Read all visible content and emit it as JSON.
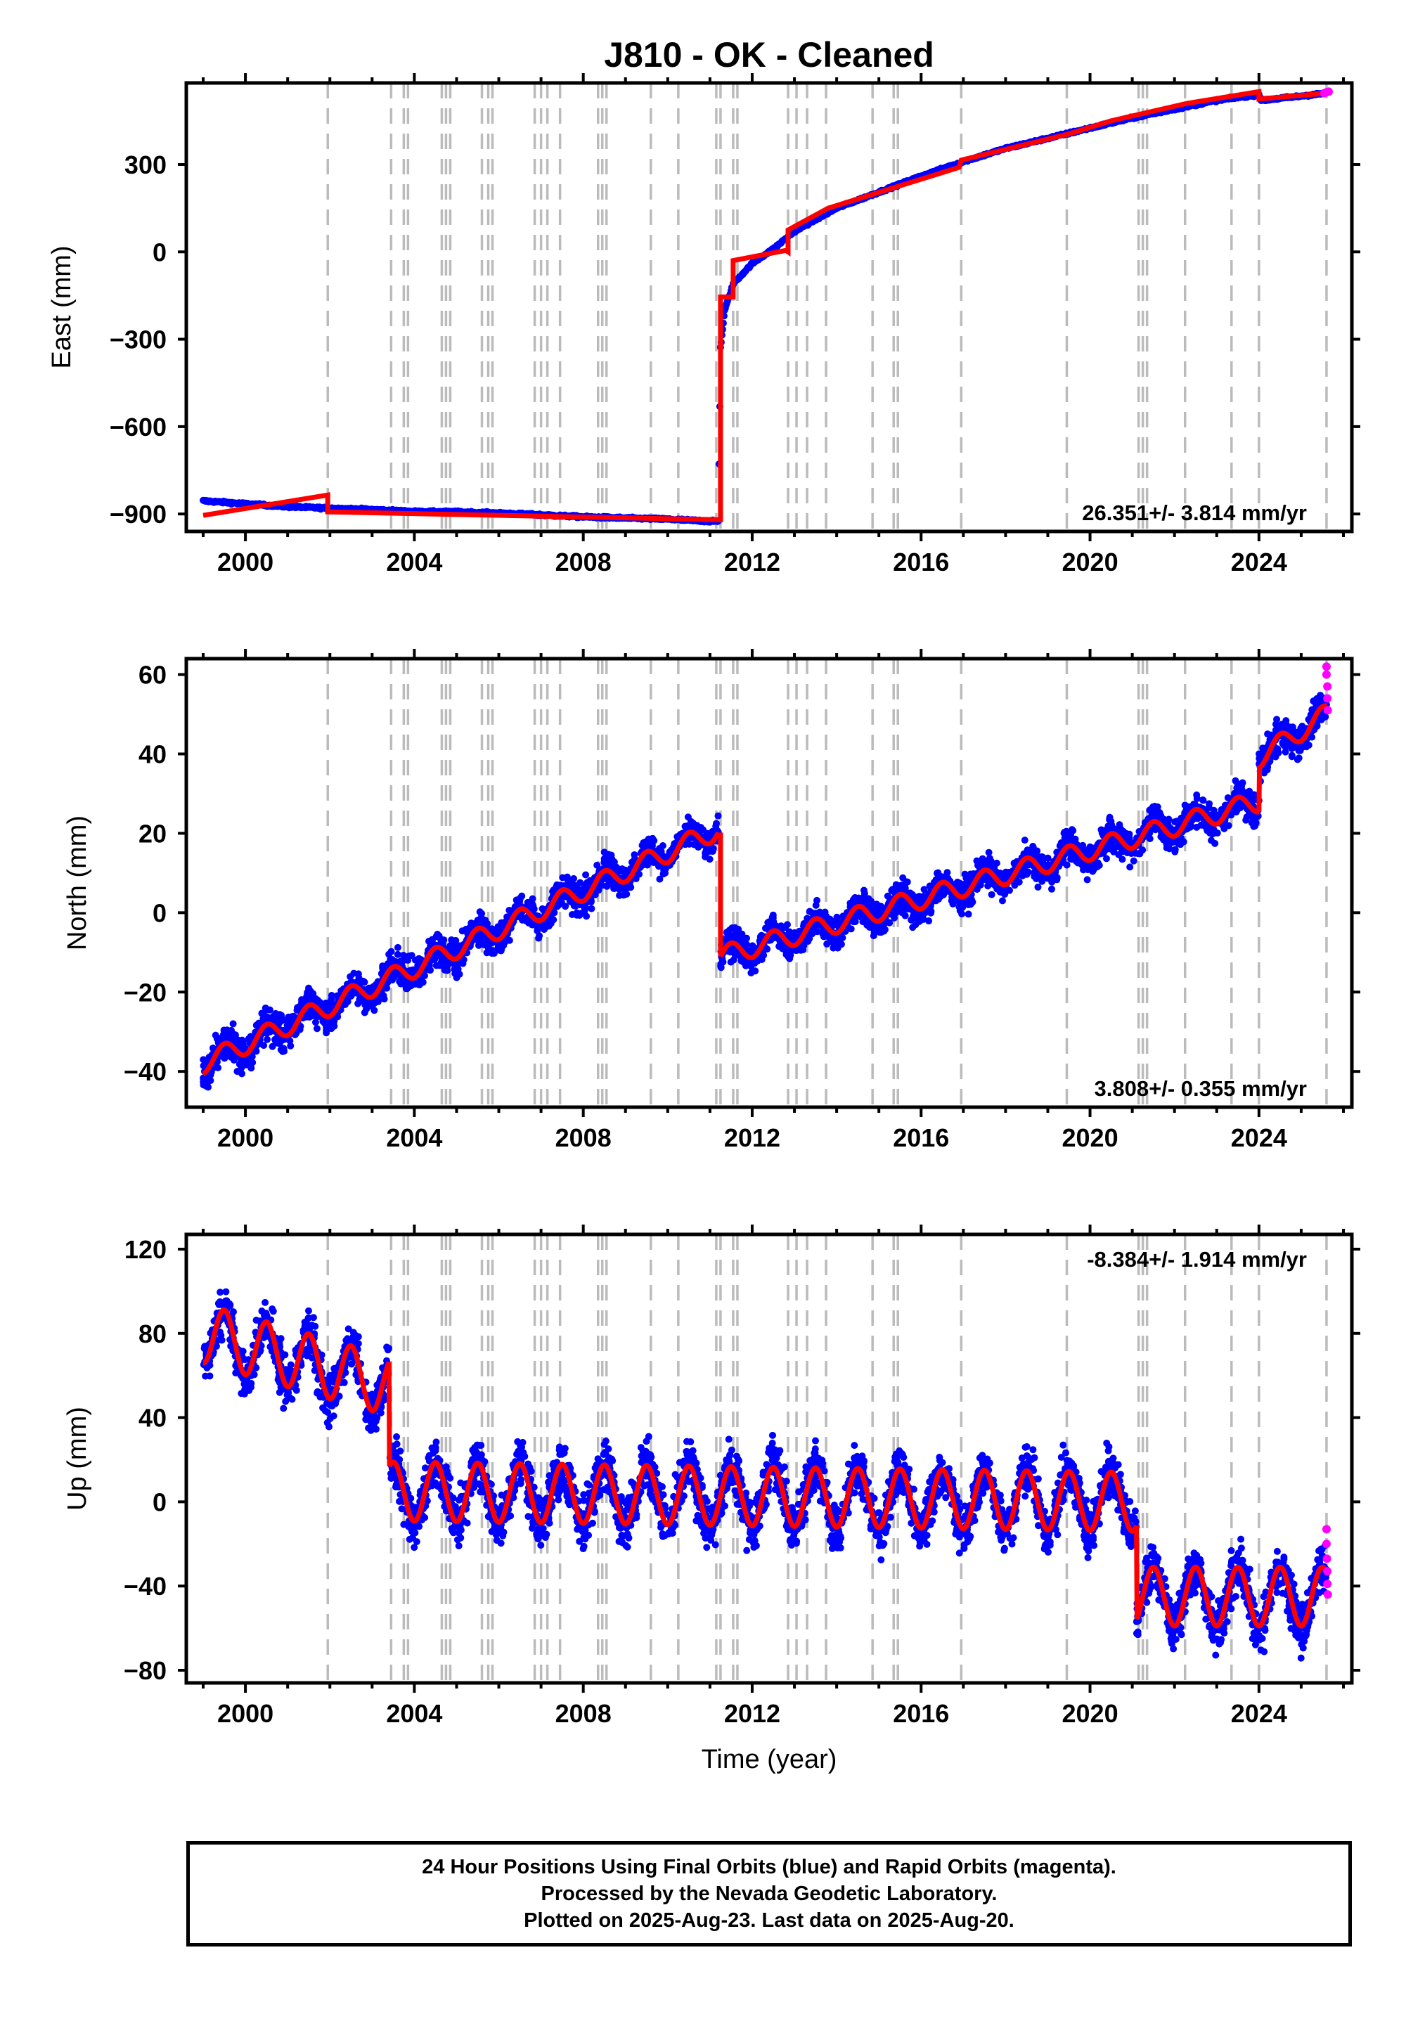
{
  "chart_data": {
    "type": "scatter",
    "title": "J810  - OK - Cleaned",
    "xlabel": "Time (year)",
    "x_ticks": [
      2000,
      2004,
      2008,
      2012,
      2016,
      2020,
      2024
    ],
    "xlim": [
      1998.6,
      2026.2
    ],
    "series_colors": {
      "final_orbits": "#0000ff",
      "rapid_orbits": "#ff00ff",
      "model": "#ff0000",
      "event_lines": "#bbbbbb"
    },
    "event_lines": [
      2001.95,
      2003.45,
      2003.75,
      2003.85,
      2004.65,
      2004.75,
      2004.85,
      2005.6,
      2005.75,
      2005.85,
      2006.85,
      2007.0,
      2007.15,
      2007.45,
      2008.35,
      2008.45,
      2008.55,
      2009.6,
      2010.25,
      2011.15,
      2011.25,
      2011.55,
      2011.65,
      2012.85,
      2013.05,
      2013.3,
      2013.75,
      2014.85,
      2015.35,
      2015.45,
      2016.95,
      2019.45,
      2021.15,
      2021.25,
      2021.35,
      2022.25,
      2023.35,
      2024.0,
      2025.6
    ],
    "panels": [
      {
        "ylabel": "East (mm)",
        "ylim": [
          -960,
          580
        ],
        "y_ticks": [
          300,
          0,
          -300,
          -600,
          -900
        ],
        "rate_label": "26.351+/- 3.814 mm/yr",
        "rate_position": "bottom-right",
        "model": [
          [
            1999.0,
            -905
          ],
          [
            2001.95,
            -835
          ],
          [
            2001.95,
            -893
          ],
          [
            2011.25,
            -920
          ],
          [
            2011.25,
            -155
          ],
          [
            2011.55,
            -155
          ],
          [
            2011.55,
            -30
          ],
          [
            2012.8,
            5
          ],
          [
            2012.85,
            0
          ],
          [
            2012.85,
            75
          ],
          [
            2013.8,
            150
          ],
          [
            2016.9,
            290
          ],
          [
            2016.95,
            315
          ],
          [
            2019.5,
            405
          ],
          [
            2020.5,
            450
          ],
          [
            2022.3,
            510
          ],
          [
            2024.0,
            550
          ],
          [
            2024.0,
            525
          ],
          [
            2025.6,
            545
          ]
        ],
        "observations": [
          [
            1999.0,
            -855
          ],
          [
            2000.0,
            -865
          ],
          [
            2001.0,
            -875
          ],
          [
            2001.95,
            -880
          ],
          [
            2003.0,
            -885
          ],
          [
            2004.0,
            -892
          ],
          [
            2005.0,
            -893
          ],
          [
            2006.0,
            -897
          ],
          [
            2007.0,
            -903
          ],
          [
            2008.0,
            -910
          ],
          [
            2009.0,
            -914
          ],
          [
            2010.0,
            -918
          ],
          [
            2011.0,
            -925
          ],
          [
            2011.2,
            -925
          ],
          [
            2011.25,
            -330
          ],
          [
            2011.35,
            -200
          ],
          [
            2011.55,
            -110
          ],
          [
            2012.0,
            -40
          ],
          [
            2012.5,
            10
          ],
          [
            2013.0,
            70
          ],
          [
            2014.0,
            150
          ],
          [
            2015.0,
            205
          ],
          [
            2016.0,
            260
          ],
          [
            2017.0,
            310
          ],
          [
            2018.0,
            355
          ],
          [
            2019.0,
            390
          ],
          [
            2020.0,
            425
          ],
          [
            2021.0,
            460
          ],
          [
            2022.0,
            490
          ],
          [
            2023.0,
            520
          ],
          [
            2024.0,
            540
          ],
          [
            2024.05,
            520
          ],
          [
            2025.0,
            535
          ],
          [
            2025.6,
            545
          ]
        ],
        "rapid": [
          [
            2025.55,
            545
          ],
          [
            2025.6,
            548
          ],
          [
            2025.65,
            550
          ]
        ]
      },
      {
        "ylabel": "North (mm)",
        "ylim": [
          -49,
          64
        ],
        "y_ticks": [
          60,
          40,
          20,
          0,
          -20,
          -40
        ],
        "rate_label": "3.808+/- 0.355 mm/yr",
        "rate_position": "bottom-right",
        "seasonal_amp": 2.6,
        "offsets": [
          [
            2011.25,
            -30
          ],
          [
            2024.0,
            8
          ]
        ],
        "trend_segments": [
          [
            1999.0,
            -38,
            2011.2,
            21
          ],
          [
            2011.25,
            -11,
            2024.0,
            28
          ],
          [
            2024.0,
            39,
            2025.6,
            50
          ]
        ],
        "observation_noise": 3.5,
        "rapid": [
          [
            2025.6,
            62
          ],
          [
            2025.6,
            60
          ],
          [
            2025.62,
            57
          ],
          [
            2025.62,
            54
          ],
          [
            2025.63,
            51
          ]
        ]
      },
      {
        "ylabel": "Up (mm)",
        "ylim": [
          -86,
          127
        ],
        "y_ticks": [
          120,
          80,
          40,
          0,
          -40,
          -80
        ],
        "rate_label": "-8.384+/- 1.914 mm/yr",
        "rate_position": "top-right",
        "seasonal_amp": 14,
        "trend_segments": [
          [
            1999.0,
            80,
            2003.4,
            55
          ],
          [
            2003.4,
            5,
            2021.1,
            0
          ],
          [
            2021.1,
            -45,
            2025.6,
            -45
          ]
        ],
        "observation_noise": 10,
        "rapid": [
          [
            2025.6,
            -13
          ],
          [
            2025.6,
            -20
          ],
          [
            2025.61,
            -27
          ],
          [
            2025.62,
            -33
          ],
          [
            2025.62,
            -39
          ],
          [
            2025.63,
            -44
          ]
        ]
      }
    ]
  },
  "footer": {
    "line1": "24 Hour Positions Using Final Orbits (blue) and Rapid Orbits (magenta).",
    "line2": "Processed by the Nevada Geodetic Laboratory.",
    "line3": "Plotted on 2025-Aug-23. Last data on 2025-Aug-20."
  }
}
